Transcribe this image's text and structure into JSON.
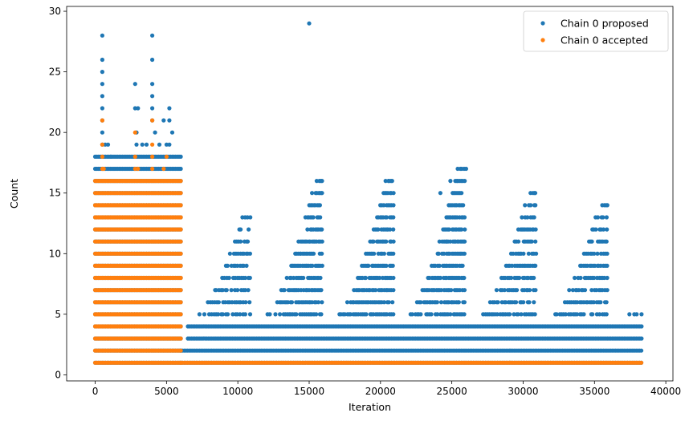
{
  "chart_data": {
    "type": "scatter",
    "xlabel": "Iteration",
    "ylabel": "Count",
    "xlim": [
      -2000,
      40500
    ],
    "ylim": [
      -0.5,
      30.4
    ],
    "xticks": [
      0,
      5000,
      10000,
      15000,
      20000,
      25000,
      30000,
      35000,
      40000
    ],
    "yticks": [
      0,
      5,
      10,
      15,
      20,
      25,
      30
    ],
    "grid": false,
    "legend_position": "top-right",
    "series": [
      {
        "name": "Chain 0 proposed",
        "color": "#1f77b4",
        "bands": [
          {
            "x_start": 0,
            "x_end": 6000,
            "y": [
              1,
              2,
              3,
              4,
              5,
              6,
              7,
              8,
              9,
              10,
              11,
              12,
              13,
              14,
              15,
              16,
              17,
              18
            ]
          },
          {
            "x_start": 6000,
            "x_end": 38300,
            "y": [
              1,
              2
            ]
          },
          {
            "x_start": 6500,
            "x_end": 38300,
            "y": [
              3,
              4
            ]
          }
        ],
        "cycles": [
          {
            "start": 6000,
            "end": 11000,
            "peak": 13
          },
          {
            "start": 11000,
            "end": 16000,
            "peak": 16
          },
          {
            "start": 16000,
            "end": 21000,
            "peak": 16
          },
          {
            "start": 21000,
            "end": 26000,
            "peak": 17
          },
          {
            "start": 26000,
            "end": 31000,
            "peak": 15
          },
          {
            "start": 31000,
            "end": 36000,
            "peak": 14
          },
          {
            "start": 36000,
            "end": 38400,
            "peak": 5
          }
        ],
        "points": [
          [
            500,
            28
          ],
          [
            500,
            26
          ],
          [
            500,
            25
          ],
          [
            500,
            24
          ],
          [
            500,
            23
          ],
          [
            500,
            22
          ],
          [
            500,
            21
          ],
          [
            500,
            20
          ],
          [
            500,
            19
          ],
          [
            700,
            19
          ],
          [
            900,
            19
          ],
          [
            1100,
            18
          ],
          [
            2800,
            24
          ],
          [
            2800,
            22
          ],
          [
            3000,
            22
          ],
          [
            2900,
            20
          ],
          [
            2900,
            19
          ],
          [
            3300,
            19
          ],
          [
            3600,
            19
          ],
          [
            4000,
            28
          ],
          [
            4000,
            26
          ],
          [
            4000,
            24
          ],
          [
            4000,
            23
          ],
          [
            4000,
            22
          ],
          [
            4000,
            21
          ],
          [
            4200,
            20
          ],
          [
            4800,
            21
          ],
          [
            5200,
            22
          ],
          [
            5200,
            21
          ],
          [
            5400,
            20
          ],
          [
            5000,
            19
          ],
          [
            5200,
            19
          ],
          [
            4500,
            19
          ],
          [
            15000,
            29
          ],
          [
            26000,
            17
          ],
          [
            25600,
            17
          ],
          [
            24900,
            16
          ],
          [
            24200,
            15
          ],
          [
            20600,
            16
          ],
          [
            15900,
            16
          ],
          [
            15900,
            15
          ],
          [
            30800,
            15
          ],
          [
            35900,
            14
          ],
          [
            38300,
            5
          ]
        ]
      },
      {
        "name": "Chain 0 accepted",
        "color": "#ff7f0e",
        "bands": [
          {
            "x_start": 0,
            "x_end": 6000,
            "y": [
              1,
              2,
              3,
              4,
              5,
              6,
              7,
              8,
              9,
              10,
              11,
              12,
              13,
              14,
              15,
              16
            ]
          },
          {
            "x_start": 6000,
            "x_end": 38300,
            "y": [
              1
            ]
          }
        ],
        "points": [
          [
            500,
            21
          ],
          [
            500,
            19
          ],
          [
            500,
            18
          ],
          [
            500,
            17
          ],
          [
            2800,
            20
          ],
          [
            2800,
            18
          ],
          [
            2800,
            17
          ],
          [
            4000,
            21
          ],
          [
            4000,
            19
          ],
          [
            4000,
            18
          ],
          [
            4000,
            17
          ],
          [
            4800,
            17
          ],
          [
            5000,
            18
          ],
          [
            600,
            17
          ],
          [
            3000,
            17
          ]
        ]
      }
    ]
  }
}
